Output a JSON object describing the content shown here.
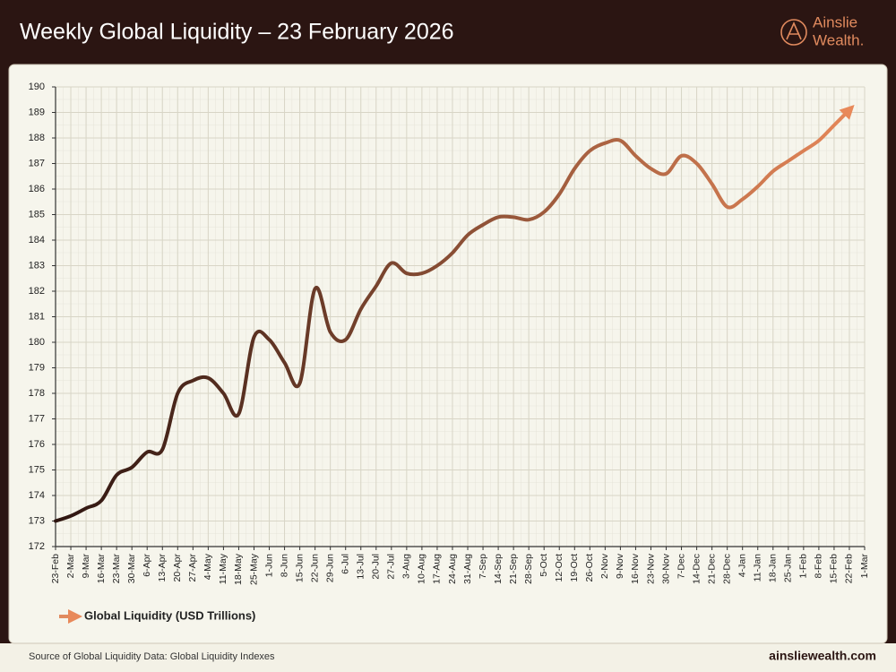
{
  "header": {
    "brand_line1": "Ainslie",
    "brand_line2": "Wealth."
  },
  "footer": {
    "source": "Source of Global Liquidity Data: Global Liquidity Indexes",
    "website": "ainsliewealth.com"
  },
  "chart_data": {
    "type": "line",
    "title": "Weekly Global Liquidity – 23 February 2026",
    "categories": [
      "23-Feb",
      "2-Mar",
      "9-Mar",
      "16-Mar",
      "23-Mar",
      "30-Mar",
      "6-Apr",
      "13-Apr",
      "20-Apr",
      "27-Apr",
      "4-May",
      "11-May",
      "18-May",
      "25-May",
      "1-Jun",
      "8-Jun",
      "15-Jun",
      "22-Jun",
      "29-Jun",
      "6-Jul",
      "13-Jul",
      "20-Jul",
      "27-Jul",
      "3-Aug",
      "10-Aug",
      "17-Aug",
      "24-Aug",
      "31-Aug",
      "7-Sep",
      "14-Sep",
      "21-Sep",
      "28-Sep",
      "5-Oct",
      "12-Oct",
      "19-Oct",
      "26-Oct",
      "2-Nov",
      "9-Nov",
      "16-Nov",
      "23-Nov",
      "30-Nov",
      "7-Dec",
      "14-Dec",
      "21-Dec",
      "28-Dec",
      "4-Jan",
      "11-Jan",
      "18-Jan",
      "25-Jan",
      "1-Feb",
      "8-Feb",
      "15-Feb",
      "22-Feb",
      "1-Mar"
    ],
    "series": [
      {
        "name": "Global Liquidity (USD Trillions)",
        "color": "#e08a5e",
        "gradient": [
          "#2e1510",
          "#e8895a"
        ],
        "values": [
          173.0,
          173.2,
          173.5,
          173.8,
          174.8,
          175.1,
          175.7,
          175.8,
          178.0,
          178.5,
          178.6,
          178.0,
          177.2,
          180.2,
          180.1,
          179.2,
          178.4,
          182.1,
          180.4,
          180.1,
          181.3,
          182.2,
          183.1,
          182.7,
          182.7,
          183.0,
          183.5,
          184.2,
          184.6,
          184.9,
          184.9,
          184.8,
          185.1,
          185.8,
          186.8,
          187.5,
          187.8,
          187.9,
          187.3,
          186.8,
          186.6,
          187.3,
          187.0,
          186.2,
          185.3,
          185.6,
          186.1,
          186.7,
          187.1,
          187.5,
          187.9,
          188.5,
          189.1,
          null
        ]
      }
    ],
    "ylim": [
      172,
      190
    ],
    "yticks": [
      172,
      173,
      174,
      175,
      176,
      177,
      178,
      179,
      180,
      181,
      182,
      183,
      184,
      185,
      186,
      187,
      188,
      189,
      190
    ],
    "grid": true,
    "legend": "bottom-left"
  }
}
